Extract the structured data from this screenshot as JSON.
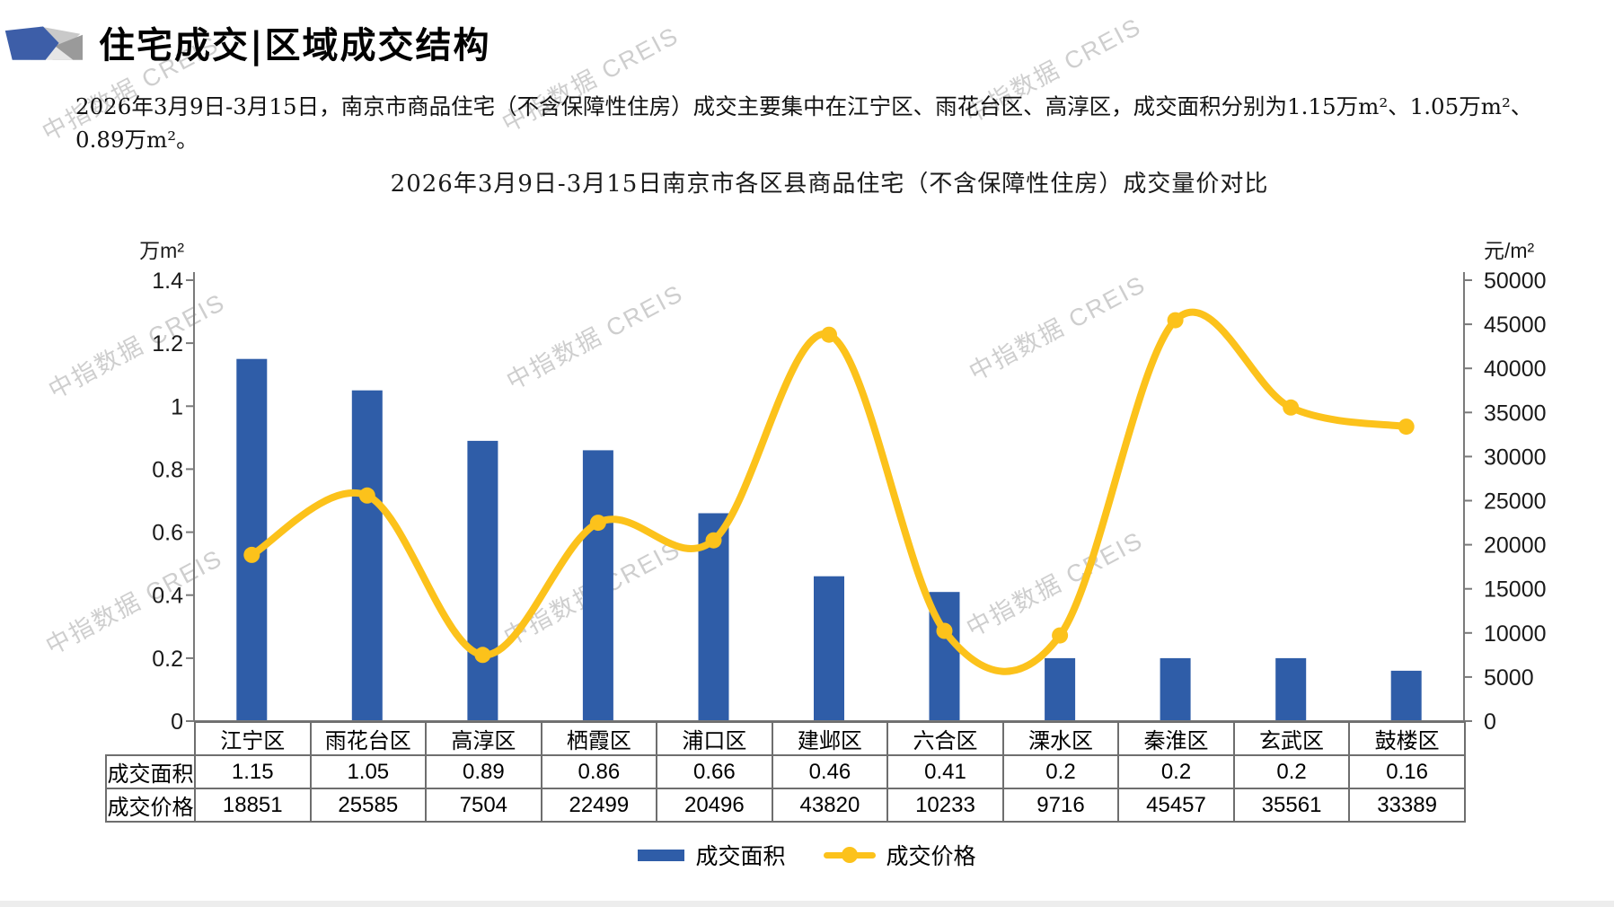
{
  "page": {
    "title": "住宅成交|区域成交结构",
    "summary": "2026年3月9日-3月15日，南京市商品住宅（不含保障性住房）成交主要集中在江宁区、雨花台区、高淳区，成交面积分别为1.15万m²、1.05万m²、0.89万m²。",
    "watermark": "中指数据 CREIS"
  },
  "chart_data": {
    "type": "bar+line",
    "title": "2026年3月9日-3月15日南京市各区县商品住宅（不含保障性住房）成交量价对比",
    "categories": [
      "江宁区",
      "雨花台区",
      "高淳区",
      "栖霞区",
      "浦口区",
      "建邺区",
      "六合区",
      "溧水区",
      "秦淮区",
      "玄武区",
      "鼓楼区"
    ],
    "series": [
      {
        "name": "成交面积",
        "type": "bar",
        "axis": "left",
        "unit": "万m²",
        "color": "#2f5da8",
        "values": [
          1.15,
          1.05,
          0.89,
          0.86,
          0.66,
          0.46,
          0.41,
          0.2,
          0.2,
          0.2,
          0.16
        ]
      },
      {
        "name": "成交价格",
        "type": "line",
        "axis": "right",
        "unit": "元/m²",
        "color": "#fcc21b",
        "values": [
          18851,
          25585,
          7504,
          22499,
          20496,
          43820,
          10233,
          9716,
          45457,
          35561,
          33389
        ]
      }
    ],
    "left_axis": {
      "label": "万m²",
      "min": 0,
      "max": 1.4,
      "step": 0.2,
      "ticks": [
        "0",
        "0.2",
        "0.4",
        "0.6",
        "0.8",
        "1",
        "1.2",
        "1.4"
      ]
    },
    "right_axis": {
      "label": "元/m²",
      "min": 0,
      "max": 50000,
      "step": 5000,
      "ticks": [
        "0",
        "5000",
        "10000",
        "15000",
        "20000",
        "25000",
        "30000",
        "35000",
        "40000",
        "45000",
        "50000"
      ]
    },
    "legend": [
      "成交面积",
      "成交价格"
    ],
    "grid": false,
    "legend_position": "bottom"
  },
  "table": {
    "rows": [
      {
        "label": "成交面积",
        "values": [
          "1.15",
          "1.05",
          "0.89",
          "0.86",
          "0.66",
          "0.46",
          "0.41",
          "0.2",
          "0.2",
          "0.2",
          "0.16"
        ]
      },
      {
        "label": "成交价格",
        "values": [
          "18851",
          "25585",
          "7504",
          "22499",
          "20496",
          "43820",
          "10233",
          "9716",
          "45457",
          "35561",
          "33389"
        ]
      }
    ]
  }
}
